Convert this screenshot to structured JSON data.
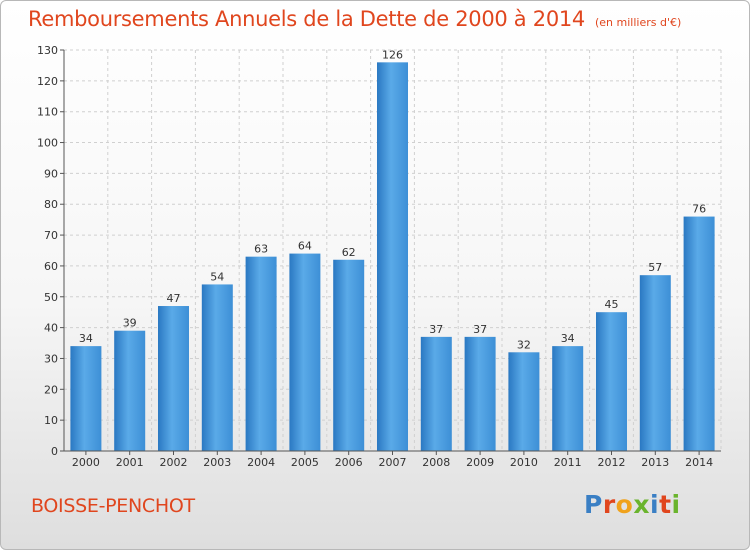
{
  "chart_data": {
    "type": "bar",
    "title": "Remboursements Annuels de la Dette de 2000 à 2014",
    "subtitle": "(en milliers d'€)",
    "categories": [
      "2000",
      "2001",
      "2002",
      "2003",
      "2004",
      "2005",
      "2006",
      "2007",
      "2008",
      "2009",
      "2010",
      "2011",
      "2012",
      "2013",
      "2014"
    ],
    "values": [
      34,
      39,
      47,
      54,
      63,
      64,
      62,
      126,
      37,
      37,
      32,
      34,
      45,
      57,
      76
    ],
    "ylim": [
      0,
      130
    ],
    "yticks": [
      0,
      10,
      20,
      30,
      40,
      50,
      60,
      70,
      80,
      90,
      100,
      110,
      120,
      130
    ],
    "grid": true,
    "bar_color": "#3d8fd6"
  },
  "footer": {
    "town": "BOISSE-PENCHOT",
    "logo_letters": [
      {
        "ch": "P",
        "color": "#3a7fc4"
      },
      {
        "ch": "r",
        "color": "#e0461e"
      },
      {
        "ch": "o",
        "color": "#f0a21c"
      },
      {
        "ch": "x",
        "color": "#6ab42d"
      },
      {
        "ch": "i",
        "color": "#3a7fc4"
      },
      {
        "ch": "t",
        "color": "#e0461e"
      },
      {
        "ch": "i",
        "color": "#6ab42d"
      }
    ]
  }
}
